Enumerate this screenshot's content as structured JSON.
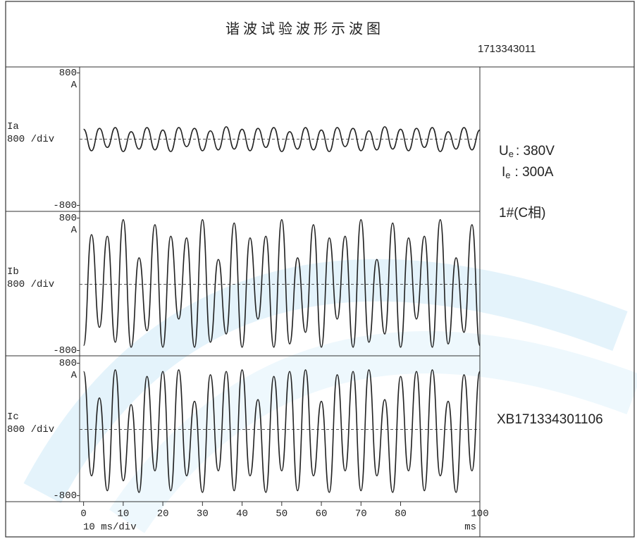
{
  "header": {
    "title": "谐 波 试 验 波 形 示 波 图",
    "code": "1713343011"
  },
  "info": {
    "ue": {
      "symbol": "U",
      "sub": "e",
      "text": ": 380V"
    },
    "ie": {
      "symbol": "I",
      "sub": "e",
      "text": ": 300A"
    },
    "phase": "1#(C相)",
    "serial": "XB171334301106"
  },
  "x_axis": {
    "xlim": [
      -1,
      100
    ],
    "xticks": [
      0,
      10,
      20,
      30,
      40,
      50,
      60,
      70,
      80,
      100
    ],
    "label": "10 ms/div",
    "unit": "ms"
  },
  "chart_data": [
    {
      "type": "line",
      "unit": "A",
      "scale": "800 /div",
      "ylim": [
        -800,
        800
      ],
      "yticks": [
        800,
        -800
      ],
      "x": [
        0,
        2,
        4,
        6,
        8,
        10,
        12,
        14,
        16,
        18,
        20,
        22,
        24,
        26,
        28,
        30,
        32,
        34,
        36,
        38,
        40,
        42,
        44,
        46,
        48,
        50,
        52,
        54,
        56,
        58,
        60,
        62,
        64,
        66,
        68,
        70,
        72,
        74,
        76,
        78,
        80,
        82,
        84,
        86,
        88,
        90,
        92,
        94,
        96,
        98,
        100
      ],
      "series": [
        {
          "name": "Ia",
          "color": "#222222",
          "values": [
            120,
            -140,
            130,
            -100,
            140,
            -150,
            90,
            -120,
            140,
            -130,
            110,
            -150,
            140,
            -90,
            130,
            -140,
            100,
            -130,
            150,
            -120,
            120,
            -140,
            130,
            -100,
            140,
            -150,
            90,
            -120,
            140,
            -130,
            110,
            -150,
            140,
            -90,
            130,
            -140,
            100,
            -130,
            150,
            -120,
            120,
            -140,
            130,
            -100,
            140,
            -150,
            90,
            -120,
            140,
            -130,
            110
          ]
        }
      ]
    },
    {
      "type": "line",
      "unit": "A",
      "scale": "800 /div",
      "ylim": [
        -800,
        800
      ],
      "yticks": [
        800,
        -800
      ],
      "x": [
        0,
        2,
        4,
        6,
        8,
        10,
        12,
        14,
        16,
        18,
        20,
        22,
        24,
        26,
        28,
        30,
        32,
        34,
        36,
        38,
        40,
        42,
        44,
        46,
        48,
        50,
        52,
        54,
        56,
        58,
        60,
        62,
        64,
        66,
        68,
        70,
        72,
        74,
        76,
        78,
        80,
        82,
        84,
        86,
        88,
        90,
        92,
        94,
        96,
        98,
        100
      ],
      "series": [
        {
          "name": "Ib",
          "color": "#222222",
          "values": [
            -740,
            600,
            -520,
            580,
            -700,
            780,
            -760,
            320,
            -560,
            720,
            -760,
            580,
            -420,
            560,
            -760,
            780,
            -700,
            300,
            -600,
            740,
            -760,
            560,
            -420,
            580,
            -760,
            780,
            -720,
            320,
            -580,
            720,
            -760,
            560,
            -420,
            580,
            -760,
            780,
            -700,
            300,
            -600,
            740,
            -760,
            560,
            -420,
            580,
            -760,
            780,
            -720,
            320,
            -580,
            720,
            -740
          ]
        }
      ]
    },
    {
      "type": "line",
      "unit": "A",
      "scale": "800 /div",
      "ylim": [
        -800,
        800
      ],
      "yticks": [
        800,
        -800
      ],
      "x": [
        0,
        2,
        4,
        6,
        8,
        10,
        12,
        14,
        16,
        18,
        20,
        22,
        24,
        26,
        28,
        30,
        32,
        34,
        36,
        38,
        40,
        42,
        44,
        46,
        48,
        50,
        52,
        54,
        56,
        58,
        60,
        62,
        64,
        66,
        68,
        70,
        72,
        74,
        76,
        78,
        80,
        82,
        84,
        86,
        88,
        90,
        92,
        94,
        96,
        98,
        100
      ],
      "series": [
        {
          "name": "Ic",
          "color": "#222222",
          "values": [
            700,
            -560,
            380,
            -740,
            720,
            -620,
            300,
            -760,
            640,
            -500,
            700,
            -740,
            720,
            -560,
            340,
            -760,
            660,
            -500,
            700,
            -740,
            720,
            -560,
            360,
            -760,
            640,
            -500,
            700,
            -740,
            720,
            -560,
            340,
            -760,
            660,
            -500,
            700,
            -740,
            720,
            -560,
            360,
            -760,
            640,
            -500,
            700,
            -740,
            720,
            -560,
            340,
            -760,
            660,
            -500,
            700
          ]
        }
      ]
    }
  ]
}
